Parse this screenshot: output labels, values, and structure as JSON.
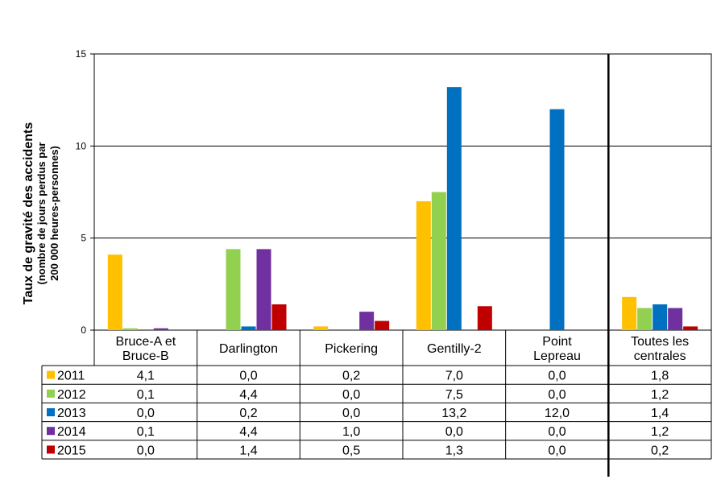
{
  "chart_data": {
    "type": "bar",
    "ylabel_line1": "Taux de gravité des accidents",
    "ylabel_line2": "(nombre de jours perdus par",
    "ylabel_line3": "200 000 heures-personnes)",
    "ylim": [
      0,
      15
    ],
    "yticks": [
      0,
      5,
      10,
      15
    ],
    "grid": true,
    "legend": "table-left",
    "categories": [
      [
        "Bruce-A et",
        "Bruce-B"
      ],
      [
        "Darlington"
      ],
      [
        "Pickering"
      ],
      [
        "Gentilly-2"
      ],
      [
        "Point",
        "Lepreau"
      ],
      [
        "Toutes les",
        "centrales"
      ]
    ],
    "series": [
      {
        "name": "2011",
        "color": "#FFC000",
        "values": [
          4.1,
          0.0,
          0.2,
          7.0,
          0.0,
          1.8
        ],
        "labels": [
          "4,1",
          "0,0",
          "0,2",
          "7,0",
          "0,0",
          "1,8"
        ]
      },
      {
        "name": "2012",
        "color": "#92D050",
        "values": [
          0.1,
          4.4,
          0.0,
          7.5,
          0.0,
          1.2
        ],
        "labels": [
          "0,1",
          "4,4",
          "0,0",
          "7,5",
          "0,0",
          "1,2"
        ]
      },
      {
        "name": "2013",
        "color": "#0070C0",
        "values": [
          0.0,
          0.2,
          0.0,
          13.2,
          12.0,
          1.4
        ],
        "labels": [
          "0,0",
          "0,2",
          "0,0",
          "13,2",
          "12,0",
          "1,4"
        ]
      },
      {
        "name": "2014",
        "color": "#7030A0",
        "values": [
          0.1,
          4.4,
          1.0,
          0.0,
          0.0,
          1.2
        ],
        "labels": [
          "0,1",
          "4,4",
          "1,0",
          "0,0",
          "0,0",
          "1,2"
        ]
      },
      {
        "name": "2015",
        "color": "#C00000",
        "values": [
          0.0,
          1.4,
          0.5,
          1.3,
          0.0,
          0.2
        ],
        "labels": [
          "0,0",
          "1,4",
          "0,5",
          "1,3",
          "0,0",
          "0,2"
        ]
      }
    ]
  }
}
